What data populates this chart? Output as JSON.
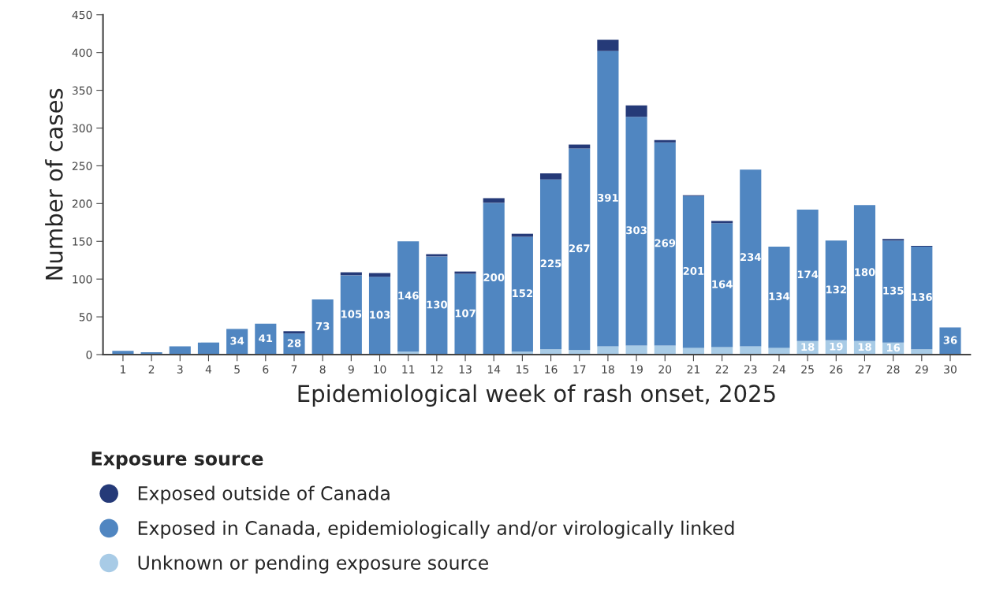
{
  "chart_data": {
    "type": "bar",
    "stacked": true,
    "xlabel": "Epidemiological week of rash onset, 2025",
    "ylabel": "Number of cases",
    "legend_title": "Exposure source",
    "legend": "bottom",
    "grid": false,
    "categories": [
      "1",
      "2",
      "3",
      "4",
      "5",
      "6",
      "7",
      "8",
      "9",
      "10",
      "11",
      "12",
      "13",
      "14",
      "15",
      "16",
      "17",
      "18",
      "19",
      "20",
      "21",
      "22",
      "23",
      "24",
      "25",
      "26",
      "27",
      "28",
      "29",
      "30"
    ],
    "ylim": [
      0,
      450
    ],
    "yticks": [
      0,
      50,
      100,
      150,
      200,
      250,
      300,
      350,
      400,
      450
    ],
    "series": [
      {
        "name": "Unknown or pending exposure source",
        "color": "#a8cbe6",
        "values": [
          0,
          0,
          0,
          0,
          0,
          0,
          0,
          0,
          0,
          0,
          4,
          0,
          0,
          1,
          4,
          7,
          6,
          11,
          12,
          12,
          9,
          10,
          11,
          9,
          18,
          19,
          18,
          16,
          7,
          0
        ],
        "value_labels": [
          null,
          null,
          null,
          null,
          null,
          null,
          null,
          null,
          null,
          null,
          null,
          null,
          null,
          null,
          null,
          null,
          null,
          null,
          null,
          null,
          null,
          null,
          null,
          null,
          "18",
          "19",
          "18",
          "16",
          null,
          null
        ]
      },
      {
        "name": "Exposed in Canada, epidemiologically and/or virologically linked",
        "color": "#5086c1",
        "values": [
          5,
          3,
          11,
          16,
          34,
          41,
          28,
          73,
          105,
          103,
          146,
          130,
          107,
          200,
          152,
          225,
          267,
          391,
          303,
          269,
          201,
          164,
          234,
          134,
          174,
          132,
          180,
          135,
          136,
          36
        ],
        "value_labels": [
          null,
          null,
          null,
          null,
          "34",
          "41",
          "28",
          "73",
          "105",
          "103",
          "146",
          "130",
          "107",
          "200",
          "152",
          "225",
          "267",
          "391",
          "303",
          "269",
          "201",
          "164",
          "234",
          "134",
          "174",
          "132",
          "180",
          "135",
          "136",
          "36"
        ]
      },
      {
        "name": "Exposed outside of Canada",
        "color": "#253a78",
        "values": [
          0,
          0,
          0,
          0,
          0,
          0,
          3,
          0,
          4,
          5,
          0,
          3,
          3,
          6,
          4,
          8,
          5,
          15,
          15,
          3,
          1,
          3,
          0,
          0,
          0,
          0,
          0,
          2,
          1,
          0
        ]
      }
    ]
  }
}
